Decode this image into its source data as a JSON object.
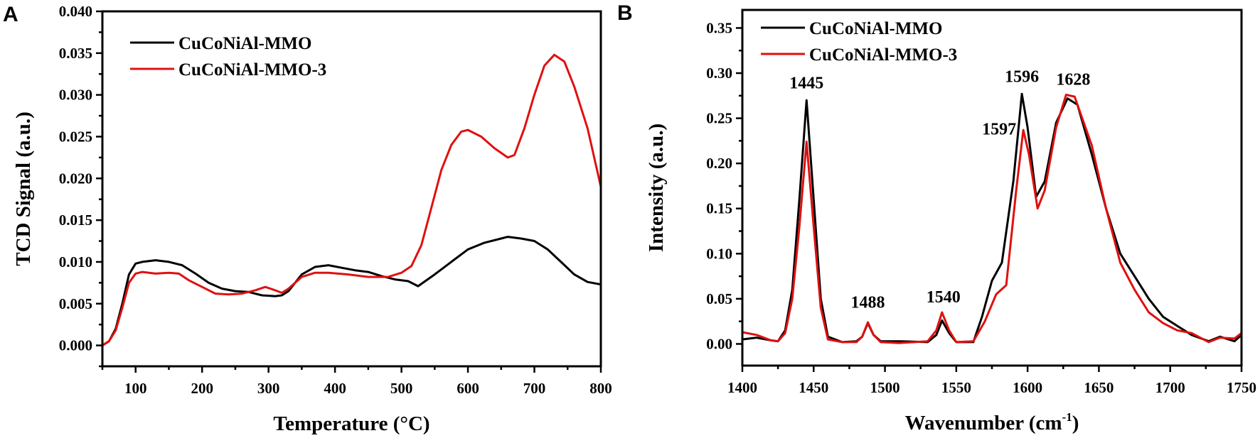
{
  "chart_data": [
    {
      "type": "line",
      "panel_label": "A",
      "xlabel": "Temperature (°C)",
      "ylabel": "TCD Signal (a.u.)",
      "xlim": [
        50,
        800
      ],
      "ylim": [
        -0.0025,
        0.04
      ],
      "xticks": [
        100,
        200,
        300,
        400,
        500,
        600,
        700,
        800
      ],
      "yticks": [
        0.0,
        0.005,
        0.01,
        0.015,
        0.02,
        0.025,
        0.03,
        0.035,
        0.04
      ],
      "ytick_labels": [
        "0.000",
        "0.005",
        "0.010",
        "0.015",
        "0.020",
        "0.025",
        "0.030",
        "0.035",
        "0.040"
      ],
      "legend_position": "top-left",
      "series": [
        {
          "name": "CuCoNiAl-MMO",
          "color": "#000000",
          "x": [
            50,
            60,
            70,
            80,
            90,
            100,
            110,
            130,
            150,
            170,
            190,
            210,
            230,
            250,
            270,
            290,
            310,
            320,
            330,
            350,
            370,
            390,
            410,
            430,
            450,
            470,
            490,
            510,
            525,
            550,
            575,
            600,
            625,
            650,
            660,
            680,
            700,
            720,
            740,
            760,
            780,
            800
          ],
          "y": [
            0,
            0.0005,
            0.002,
            0.005,
            0.0085,
            0.0098,
            0.01,
            0.0102,
            0.01,
            0.0096,
            0.0086,
            0.0075,
            0.0068,
            0.0065,
            0.0064,
            0.006,
            0.0059,
            0.006,
            0.0065,
            0.0085,
            0.0094,
            0.0096,
            0.0093,
            0.009,
            0.0088,
            0.0083,
            0.0079,
            0.0077,
            0.0071,
            0.0085,
            0.01,
            0.0115,
            0.0123,
            0.0128,
            0.013,
            0.0128,
            0.0125,
            0.0115,
            0.01,
            0.0085,
            0.0076,
            0.0073
          ]
        },
        {
          "name": "CuCoNiAl-MMO-3",
          "color": "#e01010",
          "x": [
            50,
            60,
            70,
            80,
            90,
            100,
            110,
            130,
            150,
            165,
            180,
            200,
            220,
            240,
            260,
            280,
            295,
            310,
            320,
            330,
            350,
            370,
            390,
            420,
            450,
            480,
            500,
            515,
            530,
            545,
            560,
            575,
            590,
            600,
            620,
            640,
            660,
            670,
            685,
            700,
            715,
            730,
            745,
            760,
            780,
            800
          ],
          "y": [
            0,
            0.0005,
            0.0018,
            0.0045,
            0.0075,
            0.0086,
            0.0088,
            0.0086,
            0.0087,
            0.0086,
            0.0078,
            0.007,
            0.0062,
            0.0061,
            0.0062,
            0.0066,
            0.007,
            0.0066,
            0.0063,
            0.0068,
            0.0082,
            0.0087,
            0.0087,
            0.0085,
            0.0082,
            0.0082,
            0.0087,
            0.0095,
            0.012,
            0.0165,
            0.021,
            0.024,
            0.0256,
            0.0258,
            0.025,
            0.0236,
            0.0225,
            0.0228,
            0.026,
            0.03,
            0.0335,
            0.0348,
            0.034,
            0.031,
            0.026,
            0.019
          ]
        }
      ],
      "annotations": []
    },
    {
      "type": "line",
      "panel_label": "B",
      "xlabel": "Wavenumber (cm",
      "xlabel_sup": "-1",
      "xlabel_end": ")",
      "ylabel": "Intensity (a.u.)",
      "xlim": [
        1400,
        1750
      ],
      "ylim": [
        -0.024,
        0.37
      ],
      "xticks": [
        1400,
        1450,
        1500,
        1550,
        1600,
        1650,
        1700,
        1750
      ],
      "yticks": [
        0.0,
        0.05,
        0.1,
        0.15,
        0.2,
        0.25,
        0.3,
        0.35
      ],
      "ytick_labels": [
        "0.00",
        "0.05",
        "0.10",
        "0.15",
        "0.20",
        "0.25",
        "0.30",
        "0.35"
      ],
      "legend_position": "top-left",
      "series": [
        {
          "name": "CuCoNiAl-MMO",
          "color": "#000000",
          "x": [
            1400,
            1410,
            1420,
            1425,
            1430,
            1435,
            1440,
            1445,
            1450,
            1455,
            1460,
            1470,
            1480,
            1484,
            1488,
            1492,
            1497,
            1510,
            1530,
            1536,
            1540,
            1545,
            1550,
            1562,
            1568,
            1575,
            1582,
            1590,
            1596,
            1600,
            1606,
            1612,
            1620,
            1628,
            1635,
            1645,
            1655,
            1665,
            1675,
            1685,
            1695,
            1705,
            1715,
            1727,
            1735,
            1745,
            1750
          ],
          "y": [
            0.005,
            0.007,
            0.004,
            0.003,
            0.015,
            0.06,
            0.16,
            0.27,
            0.16,
            0.05,
            0.008,
            0.002,
            0.003,
            0.008,
            0.023,
            0.01,
            0.003,
            0.003,
            0.002,
            0.01,
            0.026,
            0.012,
            0.002,
            0.002,
            0.03,
            0.07,
            0.09,
            0.18,
            0.277,
            0.24,
            0.163,
            0.18,
            0.245,
            0.272,
            0.265,
            0.21,
            0.15,
            0.1,
            0.075,
            0.05,
            0.03,
            0.02,
            0.01,
            0.003,
            0.008,
            0.003,
            0.01
          ]
        },
        {
          "name": "CuCoNiAl-MMO-3",
          "color": "#e01010",
          "x": [
            1400,
            1410,
            1420,
            1425,
            1430,
            1435,
            1440,
            1445,
            1450,
            1455,
            1460,
            1470,
            1480,
            1484,
            1488,
            1492,
            1497,
            1510,
            1530,
            1536,
            1540,
            1545,
            1550,
            1562,
            1570,
            1578,
            1585,
            1592,
            1597,
            1601,
            1607,
            1612,
            1620,
            1627,
            1633,
            1645,
            1655,
            1665,
            1675,
            1685,
            1695,
            1705,
            1715,
            1727,
            1735,
            1745,
            1750
          ],
          "y": [
            0.013,
            0.01,
            0.004,
            0.003,
            0.012,
            0.05,
            0.13,
            0.224,
            0.13,
            0.04,
            0.005,
            0.002,
            0.002,
            0.008,
            0.024,
            0.01,
            0.002,
            0.001,
            0.003,
            0.015,
            0.035,
            0.015,
            0.002,
            0.003,
            0.025,
            0.055,
            0.065,
            0.17,
            0.237,
            0.21,
            0.15,
            0.17,
            0.24,
            0.276,
            0.274,
            0.22,
            0.15,
            0.09,
            0.06,
            0.035,
            0.023,
            0.015,
            0.012,
            0.002,
            0.007,
            0.006,
            0.012
          ]
        }
      ],
      "annotations": [
        {
          "text": "1445",
          "x": 1445,
          "y": 0.283,
          "anchor": "middle"
        },
        {
          "text": "1488",
          "x": 1488,
          "y": 0.04,
          "anchor": "middle"
        },
        {
          "text": "1540",
          "x": 1541,
          "y": 0.046,
          "anchor": "middle"
        },
        {
          "text": "1596",
          "x": 1596,
          "y": 0.29,
          "anchor": "middle"
        },
        {
          "text": "1628",
          "x": 1632,
          "y": 0.287,
          "anchor": "middle"
        },
        {
          "text": "1597",
          "x": 1592,
          "y": 0.232,
          "anchor": "end"
        }
      ]
    }
  ]
}
